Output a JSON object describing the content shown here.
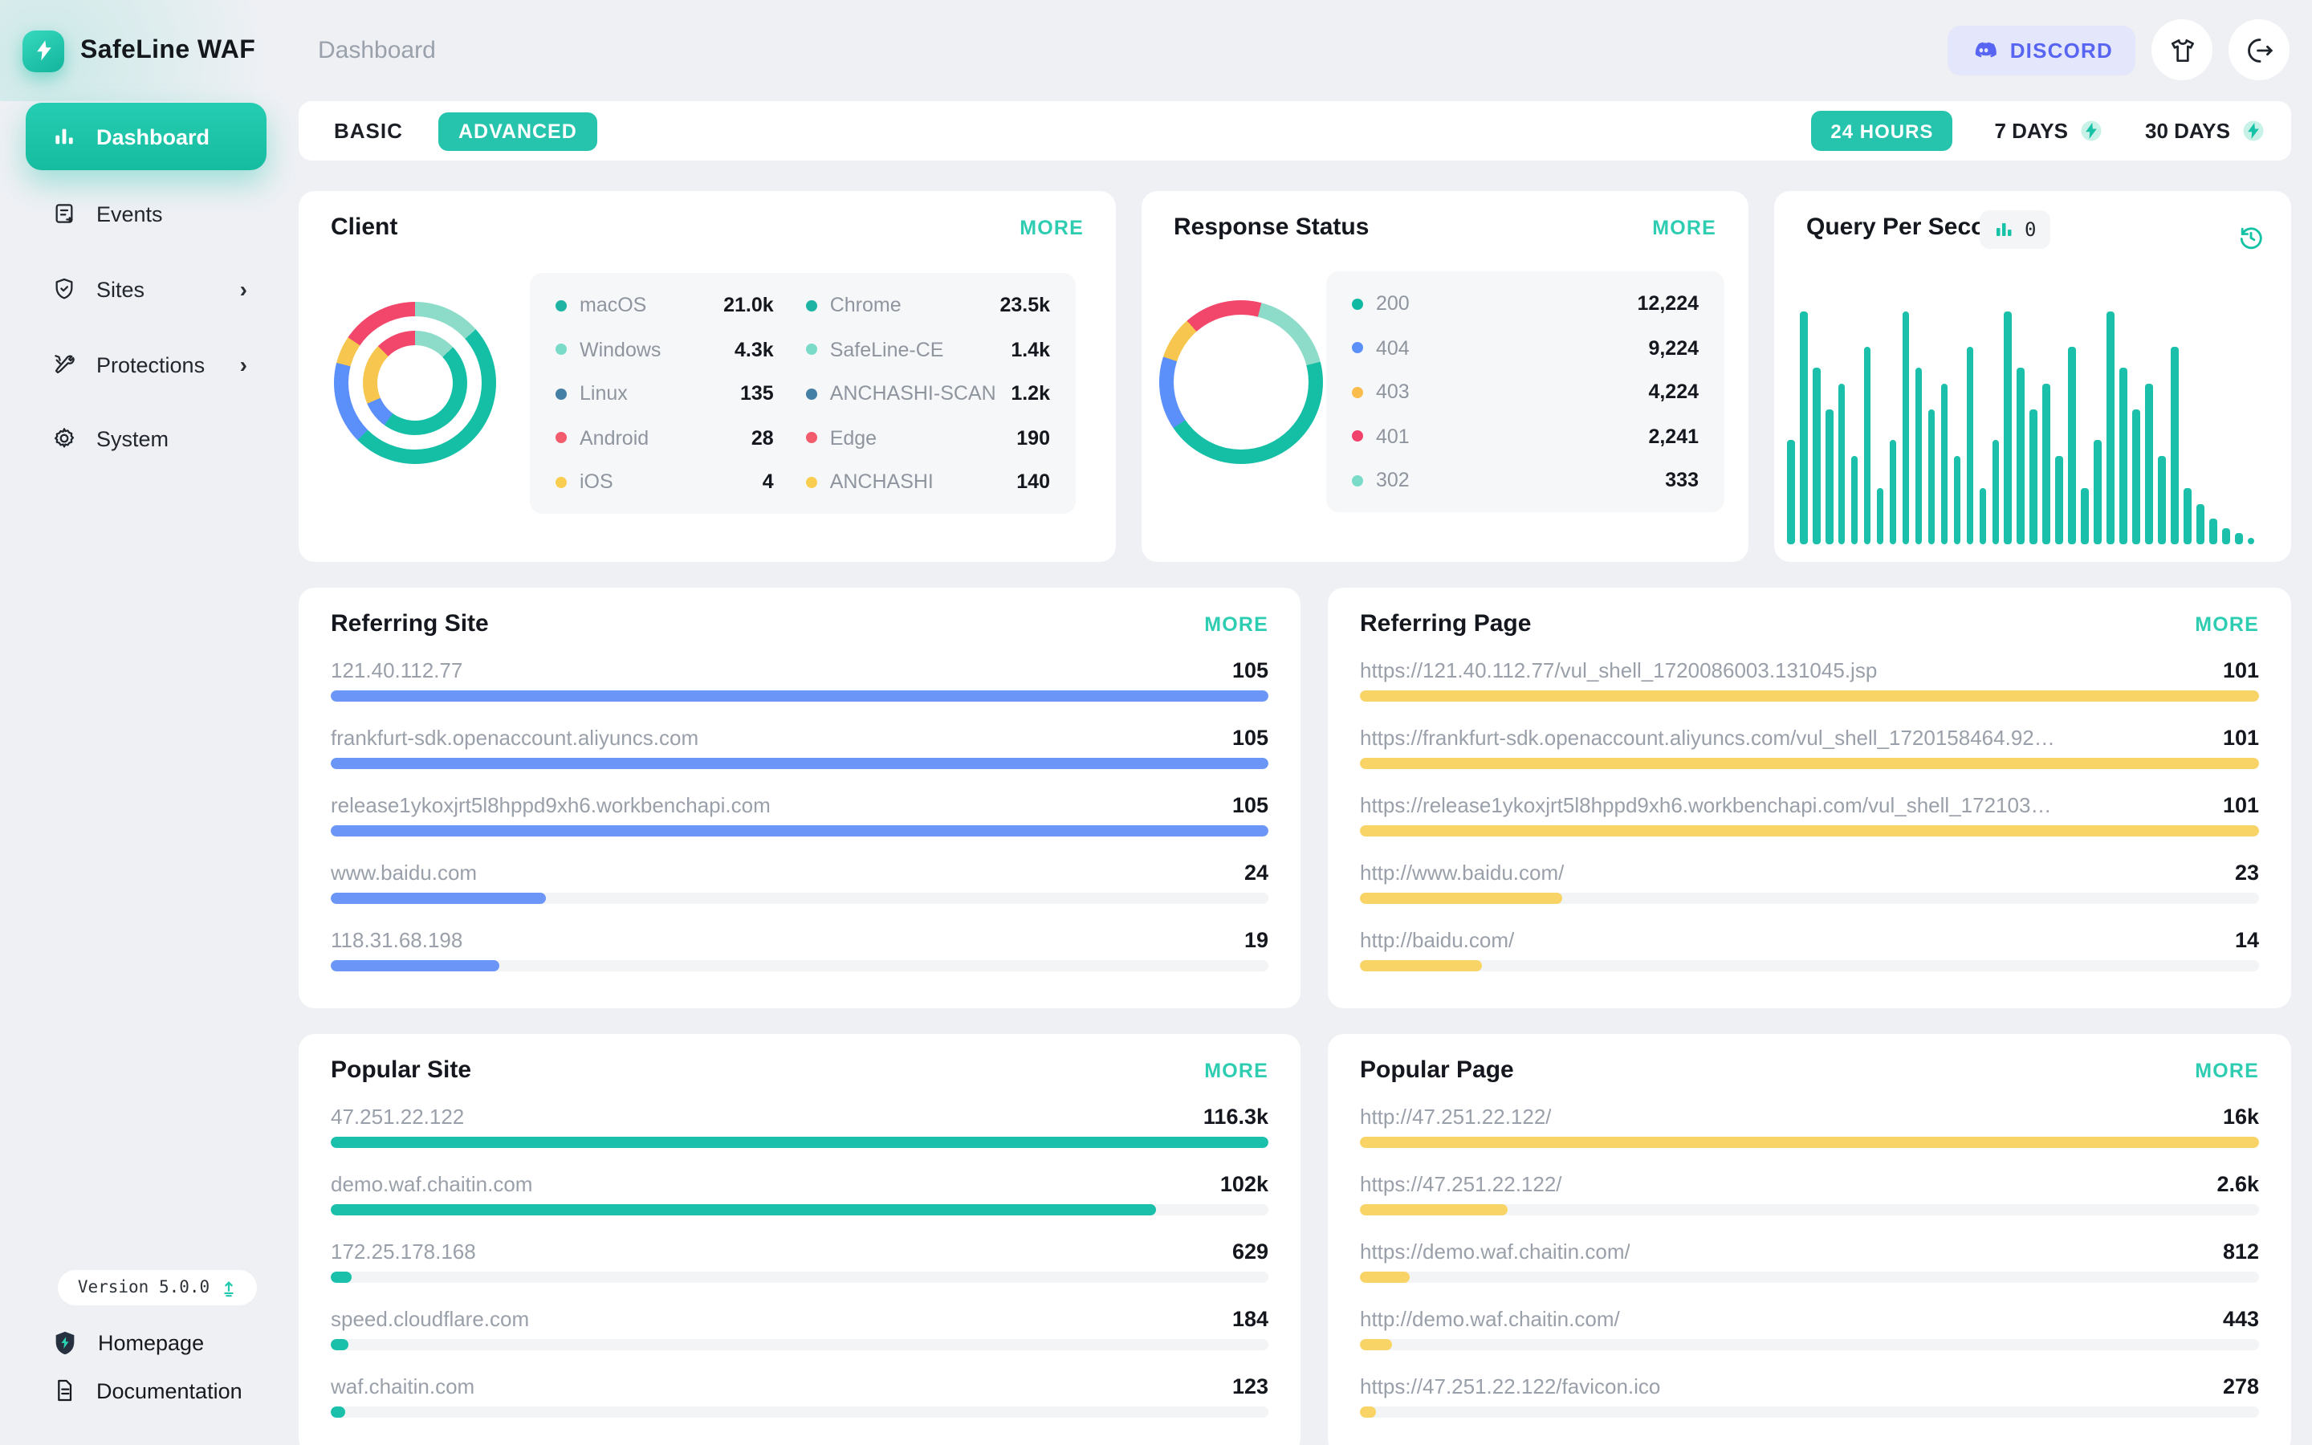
{
  "brand": {
    "app_title": "SafeLine WAF",
    "breadcrumb": "Dashboard"
  },
  "topbar": {
    "discord_label": "DISCORD"
  },
  "icons": {
    "chevron_right": "›"
  },
  "sidebar": {
    "items": [
      {
        "label": "Dashboard"
      },
      {
        "label": "Events"
      },
      {
        "label": "Sites"
      },
      {
        "label": "Protections"
      },
      {
        "label": "System"
      }
    ],
    "version": "Version 5.0.0",
    "links": [
      {
        "label": "Homepage"
      },
      {
        "label": "Documentation"
      }
    ]
  },
  "tabs": {
    "basic": "BASIC",
    "advanced": "ADVANCED",
    "range_24h": "24 HOURS",
    "range_7d": "7 DAYS",
    "range_30d": "30 DAYS"
  },
  "cards": {
    "client": {
      "title": "Client",
      "more": "MORE",
      "legend_left": [
        {
          "label": "macOS",
          "value": "21.0k",
          "color": "#1fb3a4"
        },
        {
          "label": "Windows",
          "value": "4.3k",
          "color": "#7adcc8"
        },
        {
          "label": "Linux",
          "value": "135",
          "color": "#447fa5"
        },
        {
          "label": "Android",
          "value": "28",
          "color": "#f25c6c"
        },
        {
          "label": "iOS",
          "value": "4",
          "color": "#f9cd4f"
        }
      ],
      "legend_right": [
        {
          "label": "Chrome",
          "value": "23.5k",
          "color": "#1fb3a4"
        },
        {
          "label": "SafeLine-CE",
          "value": "1.4k",
          "color": "#7adcc8"
        },
        {
          "label": "ANCHASHI-SCAN",
          "value": "1.2k",
          "color": "#447fa5"
        },
        {
          "label": "Edge",
          "value": "190",
          "color": "#f25c6c"
        },
        {
          "label": "ANCHASHI",
          "value": "140",
          "color": "#f9cd4f"
        }
      ],
      "donut_outer": [
        {
          "c": "#8ddcca",
          "f": 0,
          "t": 13.5
        },
        {
          "c": "#15bfa6",
          "f": 13.5,
          "t": 62.5
        },
        {
          "c": "#5b8ff9",
          "f": 62.5,
          "t": 79
        },
        {
          "c": "#f6c64f",
          "f": 79,
          "t": 84.5
        },
        {
          "c": "#f2476a",
          "f": 84.5,
          "t": 100
        }
      ],
      "donut_inner": [
        {
          "c": "#8ddcca",
          "f": 0,
          "t": 13
        },
        {
          "c": "#15bfa6",
          "f": 13,
          "t": 60
        },
        {
          "c": "#5b8ff9",
          "f": 60,
          "t": 68.5
        },
        {
          "c": "#f6c64f",
          "f": 68.5,
          "t": 87.5
        },
        {
          "c": "#f2476a",
          "f": 87.5,
          "t": 100
        }
      ]
    },
    "response": {
      "title": "Response Status",
      "more": "MORE",
      "legend": [
        {
          "label": "200",
          "value": "12,224",
          "color": "#10b9a2"
        },
        {
          "label": "404",
          "value": "9,224",
          "color": "#5b8ff9"
        },
        {
          "label": "403",
          "value": "4,224",
          "color": "#f9bd4d"
        },
        {
          "label": "401",
          "value": "2,241",
          "color": "#f0426b"
        },
        {
          "label": "302",
          "value": "333",
          "color": "#7adcc8"
        }
      ],
      "donut": [
        {
          "c": "#f2476a",
          "f": 0,
          "t": 4
        },
        {
          "c": "#8ddcca",
          "f": 4,
          "t": 21
        },
        {
          "c": "#15bfa6",
          "f": 21,
          "t": 65.5
        },
        {
          "c": "#5b8ff9",
          "f": 65.5,
          "t": 80
        },
        {
          "c": "#f6c64f",
          "f": 80,
          "t": 88.5
        },
        {
          "c": "#f2476a",
          "f": 88.5,
          "t": 100
        }
      ]
    },
    "qps": {
      "title": "Query Per Second",
      "badge_value": "0",
      "color": "#1ac0a9",
      "bars": [
        45,
        100,
        76,
        58,
        69,
        38,
        85,
        24,
        45,
        100,
        76,
        58,
        69,
        38,
        85,
        24,
        45,
        100,
        76,
        58,
        69,
        38,
        85,
        24,
        45,
        100,
        76,
        58,
        69,
        38,
        85,
        24,
        17,
        11,
        7,
        5,
        3
      ]
    },
    "referring_site": {
      "title": "Referring Site",
      "more": "MORE",
      "color": "#6b96f8",
      "rows": [
        {
          "label": "121.40.112.77",
          "value": "105",
          "pct": 100
        },
        {
          "label": "frankfurt-sdk.openaccount.aliyuncs.com",
          "value": "105",
          "pct": 100
        },
        {
          "label": "release1ykoxjrt5l8hppd9xh6.workbenchapi.com",
          "value": "105",
          "pct": 100
        },
        {
          "label": "www.baidu.com",
          "value": "24",
          "pct": 23
        },
        {
          "label": "118.31.68.198",
          "value": "19",
          "pct": 18
        }
      ]
    },
    "referring_page": {
      "title": "Referring Page",
      "more": "MORE",
      "color": "#f8d366",
      "rows": [
        {
          "label": "https://121.40.112.77/vul_shell_1720086003.131045.jsp",
          "value": "101",
          "pct": 100
        },
        {
          "label": "https://frankfurt-sdk.openaccount.aliyuncs.com/vul_shell_1720158464.9283571...",
          "value": "101",
          "pct": 100
        },
        {
          "label": "https://release1ykoxjrt5l8hppd9xh6.workbenchapi.com/vul_shell_1721037986...",
          "value": "101",
          "pct": 100
        },
        {
          "label": "http://www.baidu.com/",
          "value": "23",
          "pct": 22.5
        },
        {
          "label": "http://baidu.com/",
          "value": "14",
          "pct": 13.5
        }
      ]
    },
    "popular_site": {
      "title": "Popular Site",
      "more": "MORE",
      "color": "#1ac0a9",
      "rows": [
        {
          "label": "47.251.22.122",
          "value": "116.3k",
          "pct": 100
        },
        {
          "label": "demo.waf.chaitin.com",
          "value": "102k",
          "pct": 88
        },
        {
          "label": "172.25.178.168",
          "value": "629",
          "pct": 2.2
        },
        {
          "label": "speed.cloudflare.com",
          "value": "184",
          "pct": 1.8
        },
        {
          "label": "waf.chaitin.com",
          "value": "123",
          "pct": 1.6
        }
      ]
    },
    "popular_page": {
      "title": "Popular Page",
      "more": "MORE",
      "color": "#f8d366",
      "rows": [
        {
          "label": "http://47.251.22.122/",
          "value": "16k",
          "pct": 100
        },
        {
          "label": "https://47.251.22.122/",
          "value": "2.6k",
          "pct": 16.5
        },
        {
          "label": "https://demo.waf.chaitin.com/",
          "value": "812",
          "pct": 5.5
        },
        {
          "label": "http://demo.waf.chaitin.com/",
          "value": "443",
          "pct": 3.5
        },
        {
          "label": "https://47.251.22.122/favicon.ico",
          "value": "278",
          "pct": 1.7
        }
      ]
    }
  }
}
